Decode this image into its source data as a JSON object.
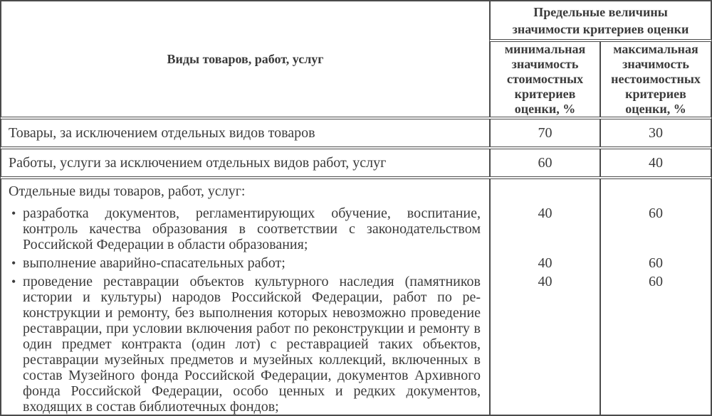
{
  "colors": {
    "text": "#3b3b3b",
    "border": "#4b4b4b",
    "background": "#ffffff"
  },
  "header": {
    "kinds_col": "Виды товаров, работ, услуг",
    "limits_line1": "Предельные величины",
    "limits_line2": "значимости критериев оценки",
    "min_col": "минимальная значимость стоимостных критериев оценки, %",
    "max_col": "максимальная значимость нестоимостных критериев оценки, %"
  },
  "rows": [
    {
      "label": "Товары, за исключением отдельных видов товаров",
      "min": "70",
      "max": "30"
    },
    {
      "label": "Работы, услуги за исключением отдельных видов работ, услуг",
      "min": "60",
      "max": "40"
    }
  ],
  "special_row": {
    "heading": "Отдельные виды товаров, работ, услуг:",
    "items": [
      {
        "text": "разработка документов, регламентирующих обучение, воспитание, контроль качества образования в соответствии с законодательством Российской Федерации в области образования;",
        "min": "40",
        "max": "60"
      },
      {
        "text": "выполнение аварийно-спасательных работ;",
        "min": "40",
        "max": "60"
      },
      {
        "text": "проведение реставрации объектов культурного наследия (памятни­ков истории и культуры) народов Российской Федерации, работ по ре­конструкции и ремонту, без выполнения которых невозможно прове­дение реставрации, при условии включения работ по ре­конструкции и ремонту в один предмет контракта (один лот) с реставрацией таких объектов, реставрации музейных предметов и музейных коллекций, включенных в состав Музейного фонда Российской Федерации, до­кументов Архивного фонда Российской Федерации, особо ценных и редких документов, входящих в состав библиотечных фондов;",
        "min": "40",
        "max": "60"
      }
    ]
  }
}
